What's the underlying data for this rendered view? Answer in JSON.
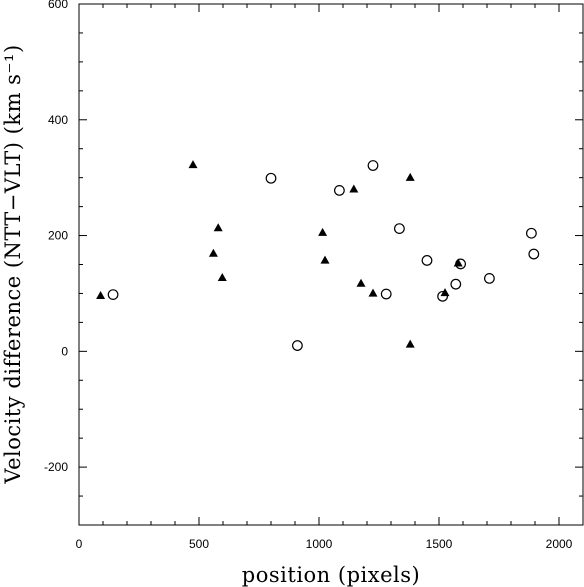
{
  "chart_data": {
    "type": "scatter",
    "xlabel": "position (pixels)",
    "ylabel": "Velocity difference (NTT−VLT) (km s⁻¹)",
    "xlim": [
      0,
      2100
    ],
    "ylim": [
      -300,
      600
    ],
    "x_ticks": [
      0,
      500,
      1000,
      1500,
      2000
    ],
    "y_ticks": [
      -200,
      0,
      200,
      400,
      600
    ],
    "x_tick_labels": [
      "0",
      "500",
      "1000",
      "1500",
      "2000"
    ],
    "y_tick_labels": [
      "-200",
      "0",
      "200",
      "400",
      "600"
    ],
    "grid": false,
    "legend": "none",
    "series": [
      {
        "marker": "filled-triangle",
        "points": [
          {
            "x": 90,
            "y": 96
          },
          {
            "x": 475,
            "y": 322
          },
          {
            "x": 580,
            "y": 213
          },
          {
            "x": 560,
            "y": 169
          },
          {
            "x": 597,
            "y": 127
          },
          {
            "x": 1015,
            "y": 205
          },
          {
            "x": 1025,
            "y": 157
          },
          {
            "x": 1145,
            "y": 280
          },
          {
            "x": 1175,
            "y": 117
          },
          {
            "x": 1225,
            "y": 100
          },
          {
            "x": 1380,
            "y": 300
          },
          {
            "x": 1380,
            "y": 12
          },
          {
            "x": 1525,
            "y": 101
          },
          {
            "x": 1580,
            "y": 152
          }
        ]
      },
      {
        "marker": "open-circle",
        "points": [
          {
            "x": 142,
            "y": 98
          },
          {
            "x": 800,
            "y": 299
          },
          {
            "x": 910,
            "y": 10
          },
          {
            "x": 1085,
            "y": 278
          },
          {
            "x": 1225,
            "y": 321
          },
          {
            "x": 1280,
            "y": 99
          },
          {
            "x": 1335,
            "y": 212
          },
          {
            "x": 1450,
            "y": 157
          },
          {
            "x": 1515,
            "y": 95
          },
          {
            "x": 1570,
            "y": 116
          },
          {
            "x": 1590,
            "y": 151
          },
          {
            "x": 1710,
            "y": 126
          },
          {
            "x": 1885,
            "y": 204
          },
          {
            "x": 1895,
            "y": 168
          }
        ]
      }
    ]
  }
}
